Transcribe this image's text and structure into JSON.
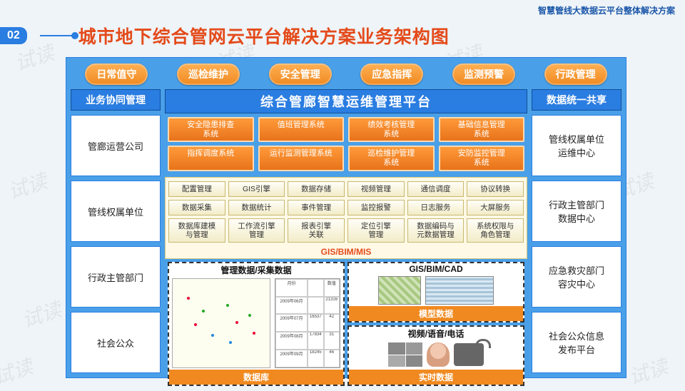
{
  "header_right": "智慧管线大数据云平台整体解决方案",
  "tag": "02",
  "main_title": "城市地下综合管网云平台解决方案业务架构图",
  "watermarks": [
    "试读",
    "试读",
    "试读",
    "试读",
    "试读",
    "试读",
    "试读",
    "试读",
    "试读",
    "试读"
  ],
  "top_pills": [
    "日常值守",
    "巡检维护",
    "安全管理",
    "应急指挥",
    "监测预警",
    "行政管理"
  ],
  "left": {
    "header": "业务协同管理",
    "boxes": [
      "管廊运营公司",
      "管线权属单位",
      "行政主管部门",
      "社会公众"
    ]
  },
  "right": {
    "header": "数据统一共享",
    "boxes": [
      "管线权属单位\n运维中心",
      "行政主管部门\n数据中心",
      "应急救灾部门\n容灾中心",
      "社会公众信息\n发布平台"
    ]
  },
  "center_header": "综合管廊智慧运维管理平台",
  "orange_rows": [
    [
      "安全隐患排查\n系统",
      "值班管理系统",
      "绩效考核管理\n系统",
      "基础信息管理\n系统"
    ],
    [
      "指挥调度系统",
      "运行监测管理系统",
      "巡检维护管理\n系统",
      "安防监控管理\n系统"
    ]
  ],
  "cream_rows": [
    [
      "配置管理",
      "GIS引擎",
      "数据存储",
      "视频管理",
      "通信调度",
      "协议转换"
    ],
    [
      "数据采集",
      "数据统计",
      "事件管理",
      "监控报警",
      "日志服务",
      "大屏服务"
    ],
    [
      "数据库建模\n与管理",
      "工作流引擎\n管理",
      "报表引擎\n关联",
      "定位引擎\n管理",
      "数据编码与\n元数据管理",
      "系统权限与\n角色管理"
    ]
  ],
  "gis_label": "GIS/BIM/MIS",
  "bottom_zones": [
    {
      "top": "GIS/BIM/CAD",
      "footer": "模型数据"
    },
    {
      "top": "管理数据/采集数据",
      "footer": ""
    },
    {
      "top": "视频/语音/电话",
      "footer": "实时数据"
    },
    {
      "top": "",
      "footer": "数据库"
    }
  ],
  "fake_table": {
    "headers": [
      "月份",
      "",
      "数值"
    ],
    "rows": [
      [
        "2009年06月",
        "",
        "21316"
      ],
      [
        "2009年07月",
        "16537",
        "42"
      ],
      [
        "2009年08月",
        "17834",
        "31"
      ],
      [
        "2009年09月",
        "18245",
        "46"
      ]
    ]
  },
  "colors": {
    "bg": "#eef4f8",
    "blue_frame": "#4aa0e8",
    "blue_dark": "#2a7de1",
    "orange": "#f08a20",
    "title_red": "#e44a1a",
    "cream": "#fff9e6"
  }
}
